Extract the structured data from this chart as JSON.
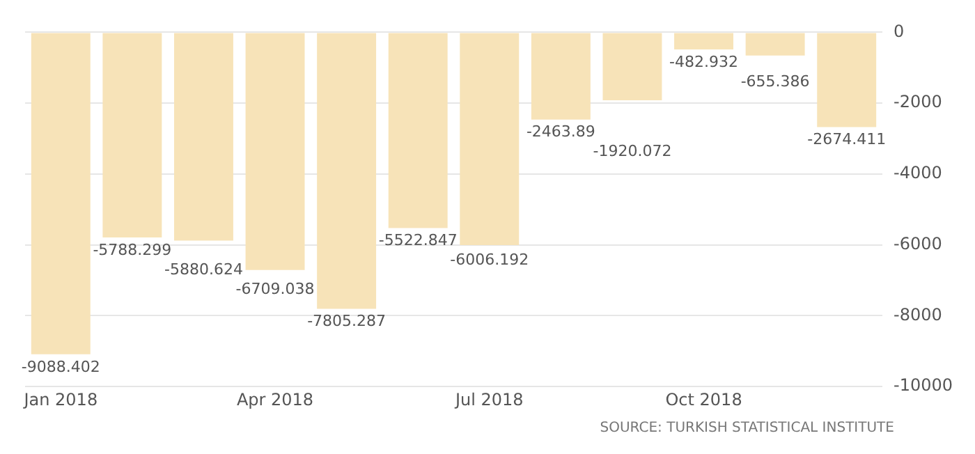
{
  "chart_data": {
    "type": "bar",
    "categories": [
      "Jan 2018",
      null,
      null,
      "Apr 2018",
      null,
      null,
      "Jul 2018",
      null,
      null,
      "Oct 2018",
      null,
      null
    ],
    "values": [
      -9088.402,
      -5788.299,
      -5880.624,
      -6709.038,
      -7805.287,
      -5522.847,
      -6006.192,
      -2463.89,
      -1920.072,
      -482.932,
      -655.386,
      -2674.411
    ],
    "color": "#f7e3b8",
    "ylim": [
      -10000,
      0
    ],
    "yticks": [
      -10000,
      -8000,
      -6000,
      -4000,
      -2000,
      0
    ],
    "grid": "y",
    "data_labels": true,
    "annotations": [
      "SOURCE: TURKISH STATISTICAL INSTITUTE"
    ]
  }
}
